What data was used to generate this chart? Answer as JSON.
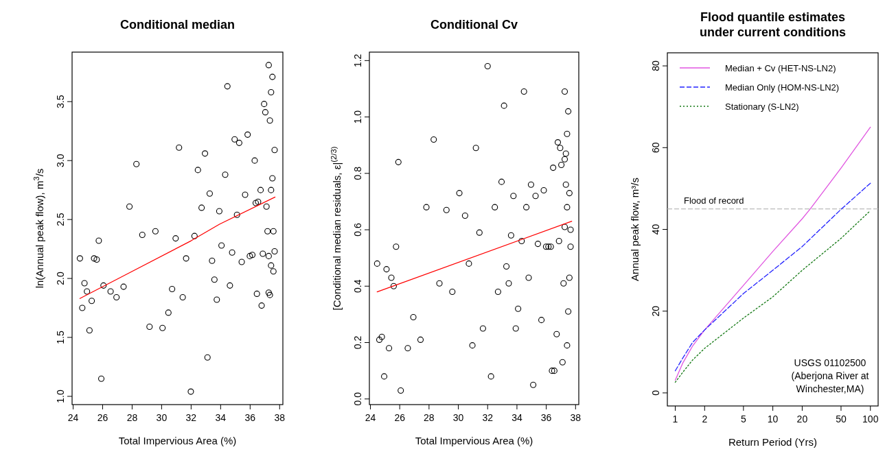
{
  "chart_data": [
    {
      "type": "scatter",
      "title": "Conditional median",
      "xlabel": "Total Impervious Area (%)",
      "ylabel": "ln(Annual peak flow), m$^{3}$/s",
      "xlim": [
        23.93,
        38.22
      ],
      "ylim": [
        0.93,
        3.92
      ],
      "xticks": [
        24,
        26,
        28,
        30,
        32,
        34,
        36,
        38
      ],
      "yticks": [
        {
          "value": 1,
          "label": "1.0"
        },
        1.5,
        {
          "value": 2,
          "label": "2.0"
        },
        2.5,
        {
          "value": 3,
          "label": "3.0"
        },
        3.5
      ],
      "grid": false,
      "series": [
        {
          "marker": "circle",
          "color": "#000000",
          "x": [
            24.46,
            24.62,
            24.77,
            24.94,
            25.26,
            25.11,
            25.42,
            25.6,
            25.74,
            25.91,
            26.06,
            26.54,
            26.94,
            27.42,
            27.82,
            28.29,
            28.69,
            29.18,
            29.58,
            30.06,
            30.46,
            30.71,
            30.95,
            31.18,
            31.43,
            31.66,
            31.98,
            32.23,
            32.46,
            32.71,
            32.94,
            33.11,
            33.26,
            33.42,
            33.58,
            33.74,
            33.91,
            34.06,
            34.31,
            34.46,
            34.63,
            34.78,
            34.95,
            35.11,
            35.26,
            35.43,
            35.66,
            35.83,
            35.98,
            36.15,
            36.31,
            36.38,
            36.46,
            36.54,
            36.71,
            36.78,
            36.86,
            36.95,
            37.03,
            37.11,
            37.18,
            37.26,
            37.26,
            37.26,
            37.34,
            37.34,
            37.42,
            37.42,
            37.42,
            37.51,
            37.51,
            37.58,
            37.58,
            37.66,
            37.66
          ],
          "values": [
            2.17,
            1.75,
            1.96,
            1.89,
            1.81,
            1.56,
            2.17,
            2.16,
            2.32,
            1.15,
            1.94,
            1.89,
            1.84,
            1.93,
            2.61,
            2.97,
            2.37,
            1.59,
            2.4,
            1.58,
            1.71,
            1.91,
            2.34,
            3.11,
            1.84,
            2.17,
            1.04,
            2.36,
            2.92,
            2.6,
            3.06,
            1.33,
            2.72,
            2.15,
            1.99,
            1.82,
            2.57,
            2.28,
            2.88,
            3.63,
            1.94,
            2.22,
            3.18,
            2.54,
            3.15,
            2.14,
            2.71,
            3.22,
            2.19,
            2.2,
            3.0,
            2.64,
            1.87,
            2.65,
            2.75,
            1.77,
            2.21,
            3.48,
            3.41,
            2.61,
            2.4,
            3.81,
            1.88,
            2.19,
            3.34,
            1.86,
            3.58,
            2.11,
            2.75,
            3.71,
            2.85,
            2.06,
            2.4,
            3.09,
            2.23
          ]
        },
        {
          "type": "line",
          "color": "#ff0000",
          "x": [
            24.46,
            28,
            32,
            33.92,
            37.69
          ],
          "values": [
            1.83,
            2.06,
            2.32,
            2.46,
            2.69
          ]
        }
      ]
    },
    {
      "type": "scatter",
      "title": "Conditional Cv",
      "xlabel": "Total Impervious Area (%)",
      "ylabel": "[Conditional median residuals, ε|$^{(2/3)}$",
      "xlim": [
        23.93,
        38.22
      ],
      "ylim": [
        -0.02,
        1.23
      ],
      "xticks": [
        24,
        26,
        28,
        30,
        32,
        34,
        36,
        38
      ],
      "yticks": [
        {
          "value": 0,
          "label": "0.0"
        },
        0.2,
        0.4,
        0.6,
        0.8,
        {
          "value": 1,
          "label": "1.0"
        },
        1.2
      ],
      "grid": false,
      "series": [
        {
          "marker": "circle",
          "color": "#000000",
          "x": [
            24.46,
            24.61,
            24.78,
            24.94,
            25.1,
            25.27,
            25.43,
            25.59,
            25.75,
            25.91,
            26.07,
            26.55,
            26.93,
            27.42,
            27.82,
            28.32,
            28.71,
            29.19,
            29.59,
            30.07,
            30.46,
            30.72,
            30.96,
            31.2,
            31.44,
            31.68,
            32.0,
            32.23,
            32.49,
            32.71,
            32.95,
            33.12,
            33.28,
            33.44,
            33.6,
            33.76,
            33.92,
            34.08,
            34.32,
            34.48,
            34.64,
            34.8,
            34.96,
            35.11,
            35.27,
            35.43,
            35.67,
            35.83,
            35.99,
            36.15,
            36.31,
            36.39,
            36.47,
            36.55,
            36.71,
            36.79,
            36.87,
            36.95,
            37.03,
            37.11,
            37.18,
            37.26,
            37.26,
            37.26,
            37.34,
            37.34,
            37.42,
            37.42,
            37.42,
            37.5,
            37.58,
            37.58,
            37.66,
            37.66,
            37.5
          ],
          "values": [
            0.48,
            0.21,
            0.22,
            0.08,
            0.46,
            0.18,
            0.43,
            0.4,
            0.54,
            0.84,
            0.03,
            0.18,
            0.29,
            0.21,
            0.68,
            0.92,
            0.41,
            0.67,
            0.38,
            0.73,
            0.65,
            0.48,
            0.19,
            0.89,
            0.59,
            0.25,
            1.18,
            0.08,
            0.68,
            0.38,
            0.77,
            1.04,
            0.47,
            0.41,
            0.58,
            0.72,
            0.25,
            0.32,
            0.56,
            1.09,
            0.68,
            0.43,
            0.76,
            0.05,
            0.72,
            0.55,
            0.28,
            0.74,
            0.54,
            0.54,
            0.54,
            0.1,
            0.82,
            0.1,
            0.23,
            0.91,
            0.56,
            0.89,
            0.83,
            0.13,
            0.41,
            0.85,
            1.09,
            0.61,
            0.87,
            0.76,
            0.68,
            0.94,
            0.19,
            0.31,
            0.73,
            0.43,
            0.6,
            0.54,
            1.02
          ]
        },
        {
          "type": "line",
          "color": "#ff0000",
          "x": [
            24.46,
            37.74
          ],
          "values": [
            0.38,
            0.63
          ]
        }
      ]
    },
    {
      "type": "line",
      "title": "Flood quantile estimates\nunder current conditions",
      "xlabel": "Return Period (Yrs)",
      "ylabel": "Annual peak flow, m³/s",
      "log": "x",
      "xlim": [
        0.83,
        120
      ],
      "ylim": [
        -3.2,
        83.2
      ],
      "xticks": [
        1,
        2,
        5,
        10,
        20,
        50,
        100
      ],
      "yticks": [
        0,
        20,
        40,
        60,
        80
      ],
      "grid": false,
      "legend": "top left",
      "ref_lines": [
        {
          "axis": "y",
          "value": 45,
          "label": "Flood of record",
          "color": "#bbbbbb",
          "line_style": "dashed"
        }
      ],
      "annotations": [
        "USGS 01102500\n(Aberjona River at\nWinchester,MA)"
      ],
      "series": [
        {
          "name": "Median + Cv (HET-NS-LN2)",
          "color": "#e055e0",
          "line_style": "solid",
          "x": [
            1,
            1.2,
            1.5,
            2,
            5,
            10,
            20,
            24.2,
            50,
            100
          ],
          "values": [
            3.1,
            7.4,
            11.4,
            15.4,
            26.3,
            34.6,
            42.6,
            45,
            55,
            65
          ]
        },
        {
          "name": "Median Only (HOM-NS-LN2)",
          "color": "#2222ff",
          "line_style": "dashed",
          "x": [
            1,
            1.2,
            1.5,
            2,
            5,
            10,
            20,
            50,
            100
          ],
          "values": [
            5.4,
            8.6,
            12.3,
            15.4,
            24.3,
            30,
            35.8,
            44.9,
            51.3
          ]
        },
        {
          "name": "Stationary (S-LN2)",
          "color": "#117711",
          "line_style": "dotted",
          "x": [
            1,
            1.2,
            1.5,
            2,
            5,
            10,
            20,
            50,
            100
          ],
          "values": [
            2.6,
            5.1,
            8,
            10.9,
            18.3,
            23.5,
            30,
            37.8,
            44.6
          ]
        }
      ]
    }
  ]
}
